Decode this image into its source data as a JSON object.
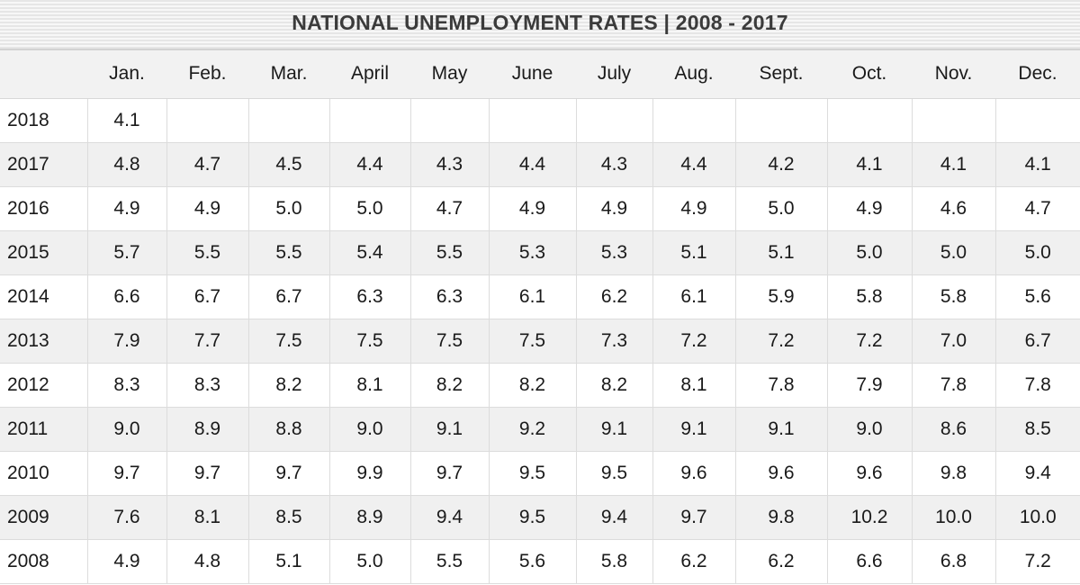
{
  "chart_data": {
    "type": "table",
    "title": "NATIONAL UNEMPLOYMENT RATES | 2008 - 2017",
    "row_header_label": "",
    "columns": [
      "Jan.",
      "Feb.",
      "Mar.",
      "April",
      "May",
      "June",
      "July",
      "Aug.",
      "Sept.",
      "Oct.",
      "Nov.",
      "Dec."
    ],
    "rows": [
      {
        "year": "2018",
        "values": [
          "4.1",
          "",
          "",
          "",
          "",
          "",
          "",
          "",
          "",
          "",
          "",
          ""
        ]
      },
      {
        "year": "2017",
        "values": [
          "4.8",
          "4.7",
          "4.5",
          "4.4",
          "4.3",
          "4.4",
          "4.3",
          "4.4",
          "4.2",
          "4.1",
          "4.1",
          "4.1"
        ]
      },
      {
        "year": "2016",
        "values": [
          "4.9",
          "4.9",
          "5.0",
          "5.0",
          "4.7",
          "4.9",
          "4.9",
          "4.9",
          "5.0",
          "4.9",
          "4.6",
          "4.7"
        ]
      },
      {
        "year": "2015",
        "values": [
          "5.7",
          "5.5",
          "5.5",
          "5.4",
          "5.5",
          "5.3",
          "5.3",
          "5.1",
          "5.1",
          "5.0",
          "5.0",
          "5.0"
        ]
      },
      {
        "year": "2014",
        "values": [
          "6.6",
          "6.7",
          "6.7",
          "6.3",
          "6.3",
          "6.1",
          "6.2",
          "6.1",
          "5.9",
          "5.8",
          "5.8",
          "5.6"
        ]
      },
      {
        "year": "2013",
        "values": [
          "7.9",
          "7.7",
          "7.5",
          "7.5",
          "7.5",
          "7.5",
          "7.3",
          "7.2",
          "7.2",
          "7.2",
          "7.0",
          "6.7"
        ]
      },
      {
        "year": "2012",
        "values": [
          "8.3",
          "8.3",
          "8.2",
          "8.1",
          "8.2",
          "8.2",
          "8.2",
          "8.1",
          "7.8",
          "7.9",
          "7.8",
          "7.8"
        ]
      },
      {
        "year": "2011",
        "values": [
          "9.0",
          "8.9",
          "8.8",
          "9.0",
          "9.1",
          "9.2",
          "9.1",
          "9.1",
          "9.1",
          "9.0",
          "8.6",
          "8.5"
        ]
      },
      {
        "year": "2010",
        "values": [
          "9.7",
          "9.7",
          "9.7",
          "9.9",
          "9.7",
          "9.5",
          "9.5",
          "9.6",
          "9.6",
          "9.6",
          "9.8",
          "9.4"
        ]
      },
      {
        "year": "2009",
        "values": [
          "7.6",
          "8.1",
          "8.5",
          "8.9",
          "9.4",
          "9.5",
          "9.4",
          "9.7",
          "9.8",
          "10.2",
          "10.0",
          "10.0"
        ]
      },
      {
        "year": "2008",
        "values": [
          "4.9",
          "4.8",
          "5.1",
          "5.0",
          "5.5",
          "5.6",
          "5.8",
          "6.2",
          "6.2",
          "6.6",
          "6.8",
          "7.2"
        ]
      }
    ]
  }
}
